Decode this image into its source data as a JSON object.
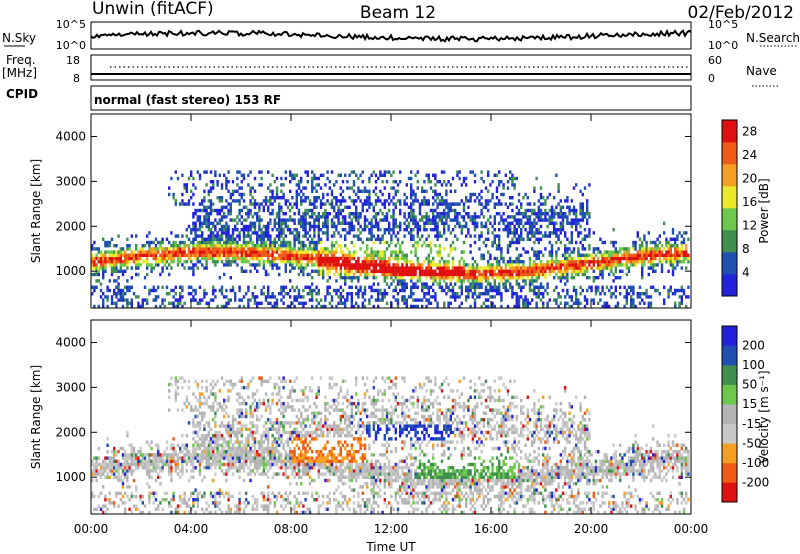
{
  "header": {
    "title_left": "Unwin (fitACF)",
    "title_center": "Beam 12",
    "title_right": "02/Feb/2012"
  },
  "status_panels": {
    "nsky": {
      "label": "N.Sky",
      "ticks": [
        "10^5",
        "10^0"
      ],
      "right_label": "N.Search",
      "right_ticks": [
        "10^5",
        "10^0"
      ]
    },
    "freq": {
      "label_line1": "Freq.",
      "label_line2": "[MHz]",
      "ticks": [
        "18",
        "8"
      ],
      "right_label": "Nave",
      "right_ticks": [
        "60",
        "0"
      ]
    },
    "cpid": {
      "label": "CPID",
      "text": "normal (fast stereo) 153 RF"
    }
  },
  "colors": {
    "power_scale": [
      "#2222dd",
      "#1f4fb0",
      "#3f8f4f",
      "#6cc84a",
      "#eaea2a",
      "#f5a020",
      "#ef5a14",
      "#e01010"
    ],
    "velocity_scale": [
      "#e01010",
      "#ef5a14",
      "#f5a020",
      "#c8c8c8",
      "#b4b4b4",
      "#6cc84a",
      "#3f8f4f",
      "#1f4fb0",
      "#2222dd"
    ]
  },
  "chart_data": [
    {
      "type": "heatmap",
      "panel": "power",
      "xlabel": "",
      "ylabel": "Slant Range [km]",
      "y_ticks": [
        "1000",
        "2000",
        "3000",
        "4000"
      ],
      "ylim": [
        180,
        4500
      ],
      "x_ticks": [
        "00:00",
        "04:00",
        "08:00",
        "12:00",
        "16:00",
        "20:00",
        "00:00"
      ],
      "colorbar": {
        "label": "Power [dB]",
        "ticks": [
          "4",
          "8",
          "12",
          "16",
          "20",
          "24",
          "28"
        ],
        "range": [
          0,
          30
        ]
      }
    },
    {
      "type": "heatmap",
      "panel": "velocity",
      "xlabel": "Time UT",
      "ylabel": "Slant Range [km]",
      "y_ticks": [
        "1000",
        "2000",
        "3000",
        "4000"
      ],
      "ylim": [
        180,
        4500
      ],
      "x_ticks": [
        "00:00",
        "04:00",
        "08:00",
        "12:00",
        "16:00",
        "20:00",
        "00:00"
      ],
      "colorbar": {
        "label": "Velocity [m s⁻¹]",
        "ticks": [
          "-200",
          "-100",
          "-50",
          "-15",
          "15",
          "50",
          "100",
          "200"
        ],
        "range": [
          -250,
          250
        ]
      }
    }
  ]
}
